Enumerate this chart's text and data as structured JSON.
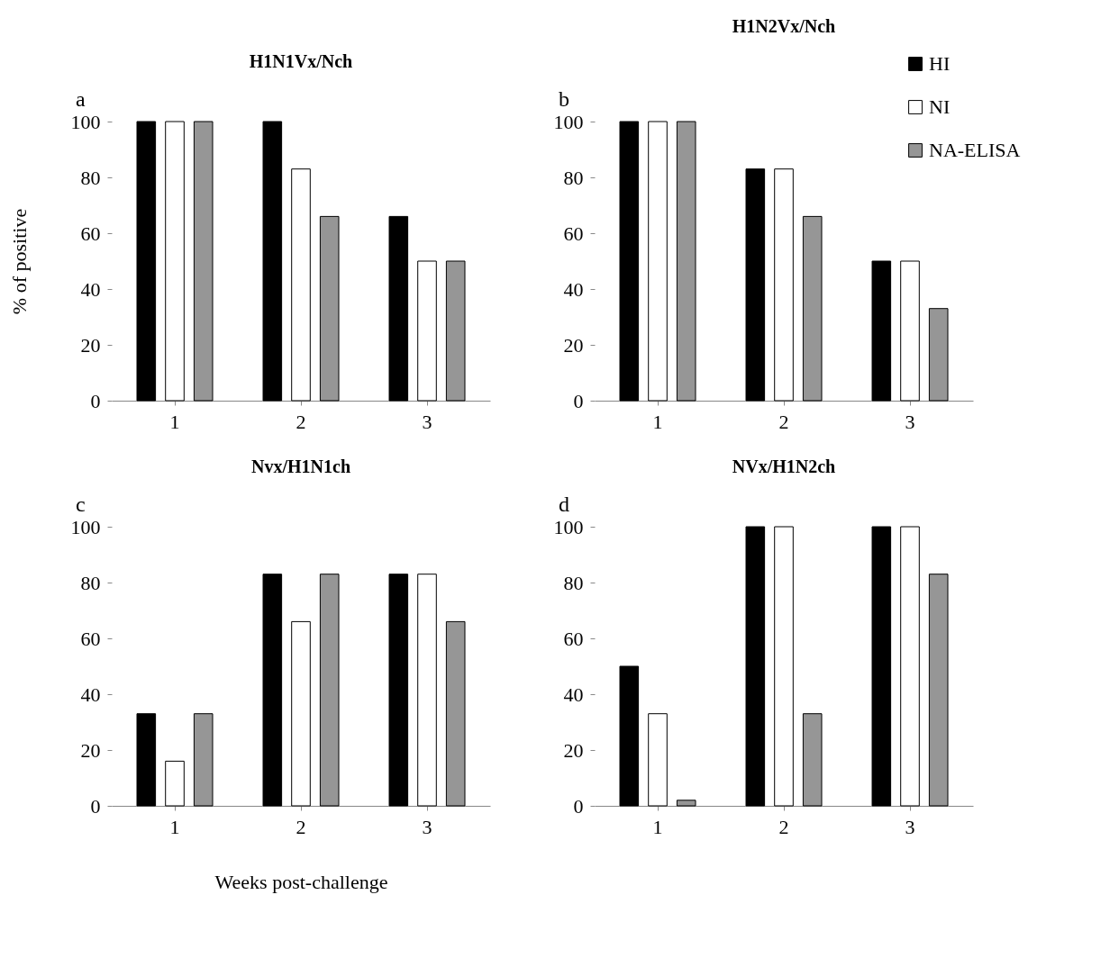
{
  "chart_data": [
    {
      "type": "bar",
      "title": "H1N1Vx/Nch",
      "annotations": [
        "a"
      ],
      "ylabel": "% of positive",
      "categories": [
        "1",
        "2",
        "3"
      ],
      "ylim": [
        0,
        100
      ],
      "yticks": [
        0,
        20,
        40,
        60,
        80,
        100
      ],
      "grid": false,
      "series": [
        {
          "color": "#000000",
          "values": [
            100,
            100,
            66
          ]
        },
        {
          "color": "#ffffff",
          "values": [
            100,
            83,
            50
          ]
        },
        {
          "color": "#969696",
          "values": [
            100,
            66,
            50
          ]
        }
      ]
    },
    {
      "type": "bar",
      "title": "H1N2Vx/Nch",
      "annotations": [
        "b"
      ],
      "categories": [
        "1",
        "2",
        "3"
      ],
      "ylim": [
        0,
        100
      ],
      "yticks": [
        0,
        20,
        40,
        60,
        80,
        100
      ],
      "grid": false,
      "legend": "top right",
      "series": [
        {
          "name": "HI",
          "color": "#000000",
          "values": [
            100,
            83,
            50
          ]
        },
        {
          "name": "NI",
          "color": "#ffffff",
          "values": [
            100,
            83,
            50
          ]
        },
        {
          "name": "NA-ELISA",
          "color": "#969696",
          "values": [
            100,
            66,
            33
          ]
        }
      ]
    },
    {
      "type": "bar",
      "title": "Nvx/H1N1ch",
      "annotations": [
        "c"
      ],
      "xlabel": "Weeks post-challenge",
      "categories": [
        "1",
        "2",
        "3"
      ],
      "ylim": [
        0,
        100
      ],
      "yticks": [
        0,
        20,
        40,
        60,
        80,
        100
      ],
      "grid": false,
      "series": [
        {
          "color": "#000000",
          "values": [
            33,
            83,
            83
          ]
        },
        {
          "color": "#ffffff",
          "values": [
            16,
            66,
            83
          ]
        },
        {
          "color": "#969696",
          "values": [
            33,
            83,
            66
          ]
        }
      ]
    },
    {
      "type": "bar",
      "title": "NVx/H1N2ch",
      "annotations": [
        "d"
      ],
      "categories": [
        "1",
        "2",
        "3"
      ],
      "ylim": [
        0,
        100
      ],
      "yticks": [
        0,
        20,
        40,
        60,
        80,
        100
      ],
      "grid": false,
      "series": [
        {
          "color": "#000000",
          "values": [
            50,
            100,
            100
          ]
        },
        {
          "color": "#ffffff",
          "values": [
            33,
            100,
            100
          ]
        },
        {
          "color": "#969696",
          "values": [
            2,
            33,
            83
          ]
        }
      ]
    }
  ]
}
